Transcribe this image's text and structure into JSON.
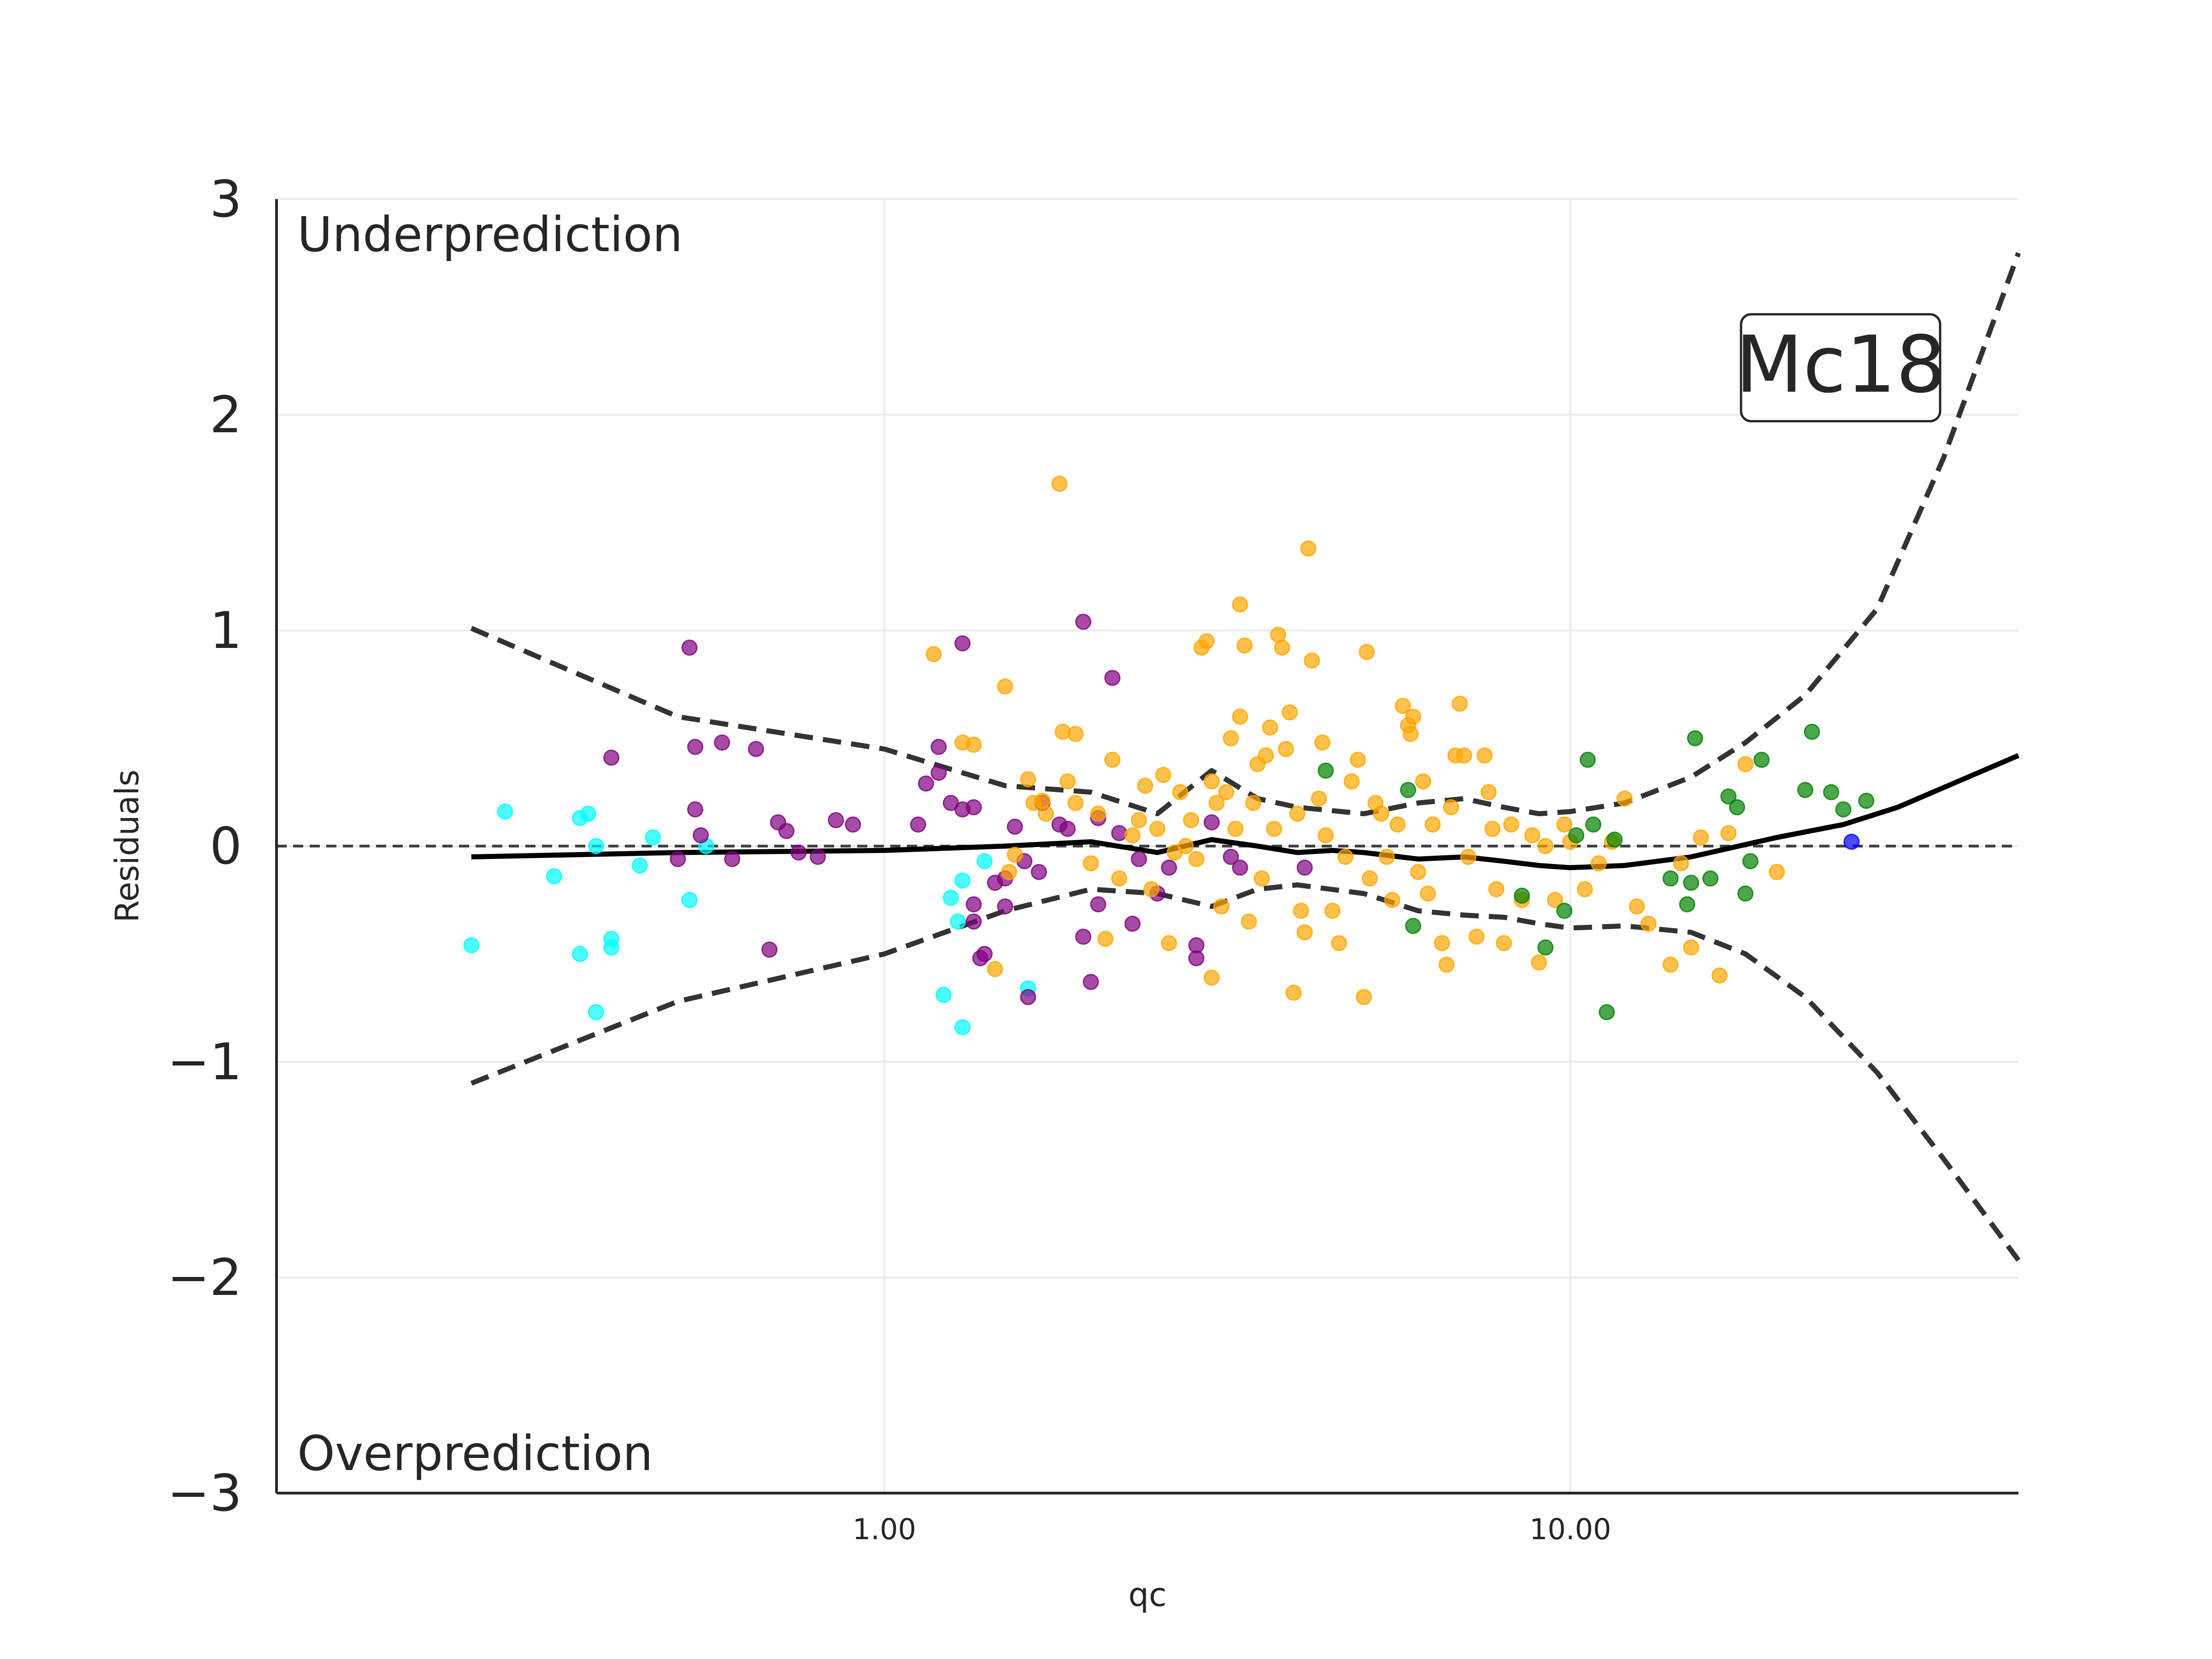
{
  "chart_data": {
    "type": "scatter",
    "xlabel": "qc",
    "ylabel": "Residuals",
    "xscale": "log",
    "xlim": [
      0.13,
      45
    ],
    "ylim": [
      -3,
      3
    ],
    "xticks": [
      1.0,
      10.0
    ],
    "xtick_labels": [
      "1.00",
      "10.00"
    ],
    "yticks": [
      -3,
      -2,
      -1,
      0,
      1,
      2,
      3
    ],
    "ytick_labels": [
      "−3",
      "−2",
      "−1",
      "0",
      "1",
      "2",
      "3"
    ],
    "grid": true,
    "annotations": {
      "top": "Underprediction",
      "bottom": "Overprediction",
      "label": "Mc18"
    },
    "colors": {
      "cyan": "#00ffff",
      "purple": "#800080",
      "orange": "#ffa500",
      "green": "#008000",
      "blue": "#0000ff"
    },
    "series": [
      {
        "color": "cyan",
        "points": [
          [
            0.25,
            -0.46
          ],
          [
            0.28,
            0.16
          ],
          [
            0.33,
            -0.14
          ],
          [
            0.36,
            0.13
          ],
          [
            0.36,
            -0.5
          ],
          [
            0.37,
            0.15
          ],
          [
            0.38,
            0.0
          ],
          [
            0.38,
            -0.77
          ],
          [
            0.4,
            -0.43
          ],
          [
            0.4,
            -0.47
          ],
          [
            0.44,
            -0.09
          ],
          [
            0.46,
            0.04
          ],
          [
            0.52,
            -0.25
          ],
          [
            0.55,
            0.0
          ],
          [
            1.22,
            -0.69
          ],
          [
            1.25,
            -0.24
          ],
          [
            1.28,
            -0.35
          ],
          [
            1.3,
            -0.16
          ],
          [
            1.3,
            -0.84
          ],
          [
            1.4,
            -0.07
          ],
          [
            1.62,
            -0.66
          ]
        ]
      },
      {
        "color": "purple",
        "points": [
          [
            0.4,
            0.41
          ],
          [
            0.5,
            -0.06
          ],
          [
            0.52,
            0.92
          ],
          [
            0.53,
            0.46
          ],
          [
            0.53,
            0.17
          ],
          [
            0.54,
            0.05
          ],
          [
            0.58,
            0.48
          ],
          [
            0.6,
            -0.06
          ],
          [
            0.65,
            0.45
          ],
          [
            0.68,
            -0.48
          ],
          [
            0.7,
            0.11
          ],
          [
            0.72,
            0.07
          ],
          [
            0.75,
            -0.03
          ],
          [
            0.8,
            -0.05
          ],
          [
            0.85,
            0.12
          ],
          [
            0.9,
            0.1
          ],
          [
            1.12,
            0.1
          ],
          [
            1.15,
            0.29
          ],
          [
            1.2,
            0.46
          ],
          [
            1.2,
            0.34
          ],
          [
            1.25,
            0.2
          ],
          [
            1.3,
            0.94
          ],
          [
            1.3,
            0.17
          ],
          [
            1.35,
            0.18
          ],
          [
            1.35,
            -0.27
          ],
          [
            1.35,
            -0.35
          ],
          [
            1.38,
            -0.52
          ],
          [
            1.4,
            -0.5
          ],
          [
            1.45,
            -0.17
          ],
          [
            1.5,
            -0.15
          ],
          [
            1.5,
            -0.28
          ],
          [
            1.55,
            0.09
          ],
          [
            1.6,
            -0.07
          ],
          [
            1.62,
            -0.7
          ],
          [
            1.68,
            -0.12
          ],
          [
            1.7,
            0.2
          ],
          [
            1.8,
            0.1
          ],
          [
            1.85,
            0.08
          ],
          [
            1.95,
            1.04
          ],
          [
            1.95,
            -0.42
          ],
          [
            2.0,
            -0.63
          ],
          [
            2.05,
            -0.27
          ],
          [
            2.05,
            0.13
          ],
          [
            2.15,
            0.78
          ],
          [
            2.2,
            0.06
          ],
          [
            2.3,
            -0.36
          ],
          [
            2.35,
            -0.06
          ],
          [
            2.5,
            -0.22
          ],
          [
            2.6,
            -0.1
          ],
          [
            2.85,
            -0.46
          ],
          [
            2.85,
            -0.52
          ],
          [
            3.0,
            0.11
          ],
          [
            3.2,
            -0.05
          ],
          [
            3.3,
            -0.1
          ],
          [
            4.1,
            -0.1
          ]
        ]
      },
      {
        "color": "orange",
        "points": [
          [
            1.18,
            0.89
          ],
          [
            1.3,
            0.48
          ],
          [
            1.35,
            0.47
          ],
          [
            1.45,
            -0.57
          ],
          [
            1.5,
            0.74
          ],
          [
            1.52,
            -0.12
          ],
          [
            1.55,
            -0.04
          ],
          [
            1.62,
            0.31
          ],
          [
            1.65,
            0.2
          ],
          [
            1.7,
            0.21
          ],
          [
            1.72,
            0.15
          ],
          [
            1.8,
            1.68
          ],
          [
            1.82,
            0.53
          ],
          [
            1.85,
            0.3
          ],
          [
            1.9,
            0.52
          ],
          [
            1.9,
            0.2
          ],
          [
            2.0,
            -0.08
          ],
          [
            2.05,
            0.15
          ],
          [
            2.1,
            -0.43
          ],
          [
            2.15,
            0.4
          ],
          [
            2.2,
            -0.15
          ],
          [
            2.3,
            0.05
          ],
          [
            2.35,
            0.12
          ],
          [
            2.4,
            0.28
          ],
          [
            2.45,
            -0.2
          ],
          [
            2.5,
            0.08
          ],
          [
            2.55,
            0.33
          ],
          [
            2.6,
            -0.45
          ],
          [
            2.65,
            -0.03
          ],
          [
            2.7,
            0.25
          ],
          [
            2.75,
            0.0
          ],
          [
            2.8,
            0.12
          ],
          [
            2.85,
            -0.06
          ],
          [
            2.9,
            0.92
          ],
          [
            2.95,
            0.95
          ],
          [
            3.0,
            -0.61
          ],
          [
            3.0,
            0.3
          ],
          [
            3.05,
            0.2
          ],
          [
            3.1,
            -0.28
          ],
          [
            3.15,
            0.25
          ],
          [
            3.2,
            0.5
          ],
          [
            3.25,
            0.08
          ],
          [
            3.3,
            1.12
          ],
          [
            3.3,
            0.6
          ],
          [
            3.35,
            0.93
          ],
          [
            3.4,
            -0.35
          ],
          [
            3.45,
            0.2
          ],
          [
            3.5,
            0.38
          ],
          [
            3.55,
            -0.15
          ],
          [
            3.6,
            0.42
          ],
          [
            3.65,
            0.55
          ],
          [
            3.7,
            0.08
          ],
          [
            3.75,
            0.98
          ],
          [
            3.8,
            0.92
          ],
          [
            3.85,
            0.45
          ],
          [
            3.9,
            0.62
          ],
          [
            3.95,
            -0.68
          ],
          [
            4.0,
            0.15
          ],
          [
            4.05,
            -0.3
          ],
          [
            4.1,
            -0.4
          ],
          [
            4.15,
            1.38
          ],
          [
            4.2,
            0.86
          ],
          [
            4.3,
            0.22
          ],
          [
            4.35,
            0.48
          ],
          [
            4.4,
            0.05
          ],
          [
            4.5,
            -0.3
          ],
          [
            4.6,
            -0.45
          ],
          [
            4.7,
            -0.05
          ],
          [
            4.8,
            0.3
          ],
          [
            4.9,
            0.4
          ],
          [
            5.0,
            -0.7
          ],
          [
            5.05,
            0.9
          ],
          [
            5.1,
            -0.15
          ],
          [
            5.2,
            0.2
          ],
          [
            5.3,
            0.15
          ],
          [
            5.4,
            -0.05
          ],
          [
            5.5,
            -0.25
          ],
          [
            5.6,
            0.1
          ],
          [
            5.7,
            0.65
          ],
          [
            5.8,
            0.56
          ],
          [
            5.85,
            0.52
          ],
          [
            5.9,
            0.6
          ],
          [
            6.0,
            -0.12
          ],
          [
            6.1,
            0.3
          ],
          [
            6.2,
            -0.22
          ],
          [
            6.3,
            0.1
          ],
          [
            6.5,
            -0.45
          ],
          [
            6.6,
            -0.55
          ],
          [
            6.7,
            0.18
          ],
          [
            6.8,
            0.42
          ],
          [
            6.9,
            0.66
          ],
          [
            7.0,
            0.42
          ],
          [
            7.1,
            -0.05
          ],
          [
            7.3,
            -0.42
          ],
          [
            7.5,
            0.42
          ],
          [
            7.6,
            0.25
          ],
          [
            7.7,
            0.08
          ],
          [
            7.8,
            -0.2
          ],
          [
            8.0,
            -0.45
          ],
          [
            8.2,
            0.1
          ],
          [
            8.5,
            -0.25
          ],
          [
            8.8,
            0.05
          ],
          [
            9.0,
            -0.54
          ],
          [
            9.2,
            0.0
          ],
          [
            9.5,
            -0.25
          ],
          [
            9.8,
            0.1
          ],
          [
            10.0,
            0.02
          ],
          [
            10.5,
            -0.2
          ],
          [
            11.0,
            -0.08
          ],
          [
            11.5,
            0.02
          ],
          [
            12.0,
            0.22
          ],
          [
            12.5,
            -0.28
          ],
          [
            13.0,
            -0.36
          ],
          [
            14.0,
            -0.55
          ],
          [
            14.5,
            -0.08
          ],
          [
            15.0,
            -0.47
          ],
          [
            15.5,
            0.04
          ],
          [
            16.5,
            -0.6
          ],
          [
            17.0,
            0.06
          ],
          [
            18.0,
            0.38
          ],
          [
            20.0,
            -0.12
          ]
        ]
      },
      {
        "color": "green",
        "points": [
          [
            4.4,
            0.35
          ],
          [
            5.8,
            0.26
          ],
          [
            5.9,
            -0.37
          ],
          [
            8.5,
            -0.23
          ],
          [
            9.2,
            -0.47
          ],
          [
            9.8,
            -0.3
          ],
          [
            10.2,
            0.05
          ],
          [
            10.6,
            0.4
          ],
          [
            10.8,
            0.1
          ],
          [
            11.3,
            -0.77
          ],
          [
            11.6,
            0.03
          ],
          [
            14.0,
            -0.15
          ],
          [
            14.8,
            -0.27
          ],
          [
            15.0,
            -0.17
          ],
          [
            15.2,
            0.5
          ],
          [
            16.0,
            -0.15
          ],
          [
            17.0,
            0.23
          ],
          [
            17.5,
            0.18
          ],
          [
            18.0,
            -0.22
          ],
          [
            18.3,
            -0.07
          ],
          [
            19.0,
            0.4
          ],
          [
            22.0,
            0.26
          ],
          [
            22.5,
            0.53
          ],
          [
            24.0,
            0.25
          ],
          [
            25.0,
            0.17
          ],
          [
            27.0,
            0.21
          ]
        ]
      },
      {
        "color": "blue",
        "points": [
          [
            25.7,
            0.02
          ]
        ]
      }
    ],
    "lines": [
      {
        "style": "dashed-thin",
        "points": [
          [
            0.13,
            0.0
          ],
          [
            45,
            0.0
          ]
        ]
      },
      {
        "style": "solid",
        "points": [
          [
            0.25,
            -0.05
          ],
          [
            0.5,
            -0.03
          ],
          [
            1.0,
            -0.02
          ],
          [
            1.5,
            0.0
          ],
          [
            2.0,
            0.02
          ],
          [
            2.5,
            -0.03
          ],
          [
            3.0,
            0.03
          ],
          [
            3.5,
            0.0
          ],
          [
            4.0,
            -0.03
          ],
          [
            4.5,
            -0.02
          ],
          [
            5.0,
            -0.03
          ],
          [
            6.0,
            -0.06
          ],
          [
            7.0,
            -0.05
          ],
          [
            8.0,
            -0.07
          ],
          [
            9.0,
            -0.09
          ],
          [
            10.0,
            -0.1
          ],
          [
            12.0,
            -0.09
          ],
          [
            15.0,
            -0.05
          ],
          [
            20.0,
            0.04
          ],
          [
            25.0,
            0.1
          ],
          [
            30.0,
            0.18
          ],
          [
            45.0,
            0.42
          ]
        ]
      },
      {
        "style": "dashed",
        "points": [
          [
            0.25,
            1.01
          ],
          [
            0.5,
            0.6
          ],
          [
            1.0,
            0.45
          ],
          [
            1.5,
            0.28
          ],
          [
            2.0,
            0.25
          ],
          [
            2.5,
            0.15
          ],
          [
            3.0,
            0.35
          ],
          [
            3.5,
            0.22
          ],
          [
            4.0,
            0.18
          ],
          [
            5.0,
            0.15
          ],
          [
            6.0,
            0.2
          ],
          [
            7.0,
            0.22
          ],
          [
            8.0,
            0.18
          ],
          [
            9.0,
            0.15
          ],
          [
            10.0,
            0.16
          ],
          [
            12.0,
            0.2
          ],
          [
            15.0,
            0.32
          ],
          [
            18.0,
            0.48
          ],
          [
            22.0,
            0.7
          ],
          [
            28.0,
            1.1
          ],
          [
            35.0,
            1.8
          ],
          [
            45.0,
            2.75
          ]
        ]
      },
      {
        "style": "dashed",
        "points": [
          [
            0.25,
            -1.1
          ],
          [
            0.5,
            -0.72
          ],
          [
            1.0,
            -0.5
          ],
          [
            1.5,
            -0.3
          ],
          [
            2.0,
            -0.2
          ],
          [
            2.5,
            -0.22
          ],
          [
            3.0,
            -0.28
          ],
          [
            3.5,
            -0.2
          ],
          [
            4.0,
            -0.18
          ],
          [
            5.0,
            -0.22
          ],
          [
            6.0,
            -0.3
          ],
          [
            7.0,
            -0.32
          ],
          [
            8.0,
            -0.33
          ],
          [
            9.0,
            -0.36
          ],
          [
            10.0,
            -0.38
          ],
          [
            12.0,
            -0.37
          ],
          [
            15.0,
            -0.4
          ],
          [
            18.0,
            -0.5
          ],
          [
            22.0,
            -0.7
          ],
          [
            28.0,
            -1.05
          ],
          [
            35.0,
            -1.45
          ],
          [
            45.0,
            -1.92
          ]
        ]
      }
    ]
  }
}
